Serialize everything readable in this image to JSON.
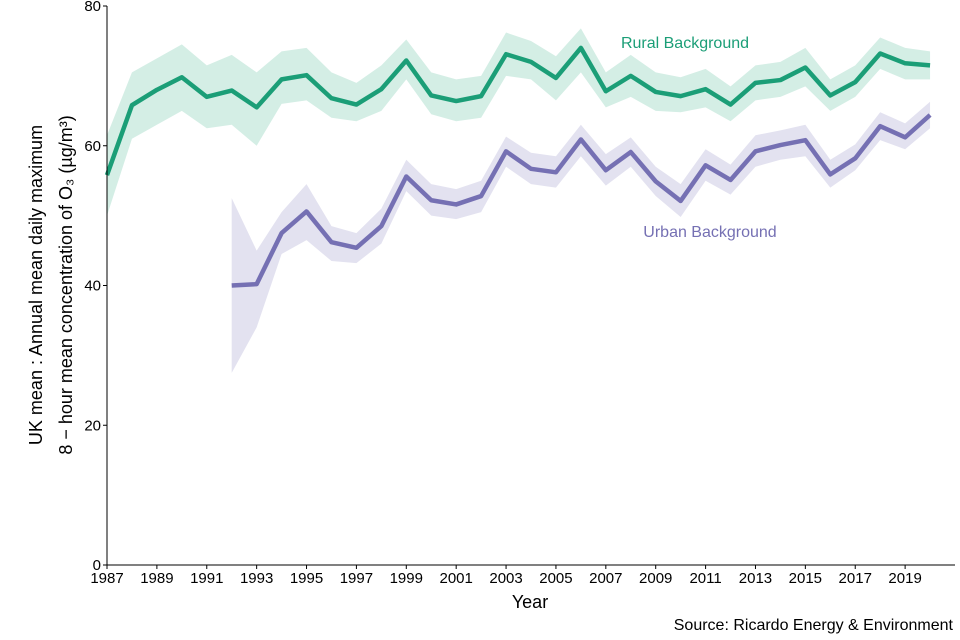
{
  "chart_data": {
    "type": "line",
    "x_label": "Year",
    "y_label": [
      "UK mean : Annual mean daily maximum",
      "8 − hour mean concentration of O₃ (µg/m³)"
    ],
    "source": "Source: Ricardo Energy & Environment",
    "x": [
      1987,
      1988,
      1989,
      1990,
      1991,
      1992,
      1993,
      1994,
      1995,
      1996,
      1997,
      1998,
      1999,
      2000,
      2001,
      2002,
      2003,
      2004,
      2005,
      2006,
      2007,
      2008,
      2009,
      2010,
      2011,
      2012,
      2013,
      2014,
      2015,
      2016,
      2017,
      2018,
      2019,
      2020
    ],
    "xlim": [
      1987,
      2021
    ],
    "xticks": [
      1987,
      1989,
      1991,
      1993,
      1995,
      1997,
      1999,
      2001,
      2003,
      2005,
      2007,
      2009,
      2011,
      2013,
      2015,
      2017,
      2019
    ],
    "ylim": [
      0,
      80
    ],
    "yticks": [
      0,
      20,
      40,
      60,
      80
    ],
    "grid": false,
    "series": [
      {
        "name": "Rural Background",
        "color": "#1b9e77",
        "band_color": "#d4eee5",
        "values": [
          55.8,
          65.8,
          68,
          69.8,
          67,
          67.9,
          65.5,
          69.5,
          70.1,
          66.8,
          65.9,
          68.1,
          72.2,
          67.2,
          66.4,
          67.1,
          73.1,
          72,
          69.7,
          74,
          67.8,
          70,
          67.7,
          67.1,
          68.1,
          65.9,
          69,
          69.4,
          71.2,
          67.2,
          69.1,
          73.2,
          71.8,
          71.5
        ],
        "lower": [
          50,
          61,
          63,
          65,
          62.5,
          63,
          60,
          66,
          66.5,
          64,
          63.5,
          65,
          69.5,
          64.5,
          63.5,
          64,
          70,
          69.5,
          66.5,
          70.5,
          65.5,
          67,
          65,
          64.8,
          65.5,
          63.5,
          66.5,
          67,
          68.5,
          65,
          67,
          71,
          69.5,
          69.5
        ],
        "upper": [
          61.5,
          70.5,
          72.5,
          74.5,
          71.5,
          73,
          70.5,
          73.5,
          74,
          70.5,
          69,
          71.5,
          75.2,
          70.5,
          69.5,
          70,
          76.2,
          75,
          72.8,
          76.8,
          70.5,
          73,
          70.5,
          69.8,
          71,
          68.5,
          71.5,
          72,
          74,
          69.5,
          71.5,
          75.5,
          74,
          73.5
        ]
      },
      {
        "name": "Urban Background",
        "color": "#7570b3",
        "band_color": "#e3e2f0",
        "values": [
          null,
          null,
          null,
          null,
          null,
          40,
          40.2,
          47.5,
          50.6,
          46.2,
          45.4,
          48.5,
          55.6,
          52.2,
          51.6,
          52.8,
          59.2,
          56.7,
          56.2,
          60.9,
          56.5,
          59.1,
          54.9,
          52.1,
          57.2,
          55.1,
          59.2,
          60.1,
          60.8,
          55.9,
          58.2,
          62.8,
          61.2,
          64.4
        ],
        "lower": [
          null,
          null,
          null,
          null,
          null,
          27.5,
          34,
          44.5,
          46.5,
          43.5,
          43.2,
          46,
          53.5,
          50,
          49.5,
          50.5,
          57,
          54.5,
          54,
          58.5,
          54.3,
          57,
          52.8,
          49.8,
          55,
          53,
          57,
          58,
          58.5,
          54,
          56.5,
          60.8,
          59.5,
          62.5
        ],
        "upper": [
          null,
          null,
          null,
          null,
          null,
          52.5,
          45,
          50.5,
          54.5,
          48.5,
          47.5,
          51,
          58,
          54.5,
          53.8,
          55,
          61.3,
          59,
          58.5,
          63,
          58.8,
          61.2,
          57,
          54.5,
          59.5,
          57.3,
          61.5,
          62.2,
          63,
          58,
          60.2,
          64.8,
          63.2,
          66.3
        ]
      }
    ]
  }
}
